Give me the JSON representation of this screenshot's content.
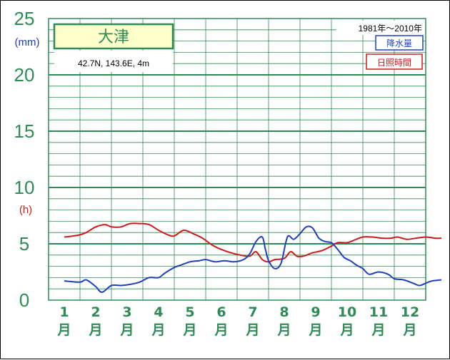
{
  "chart_data": {
    "type": "line",
    "title": "大津",
    "location": "42.7N,  143.6E,  4m",
    "period": "1981年〜2010年",
    "x_labels": [
      {
        "num": "1",
        "unit": "月"
      },
      {
        "num": "2",
        "unit": "月"
      },
      {
        "num": "3",
        "unit": "月"
      },
      {
        "num": "4",
        "unit": "月"
      },
      {
        "num": "5",
        "unit": "月"
      },
      {
        "num": "6",
        "unit": "月"
      },
      {
        "num": "7",
        "unit": "月"
      },
      {
        "num": "8",
        "unit": "月"
      },
      {
        "num": "9",
        "unit": "月"
      },
      {
        "num": "10",
        "unit": "月"
      },
      {
        "num": "11",
        "unit": "月"
      },
      {
        "num": "12",
        "unit": "月"
      }
    ],
    "y_ticks": [
      "0",
      "5",
      "10",
      "15",
      "20",
      "25"
    ],
    "ylim": [
      0,
      25
    ],
    "y_unit_precip": "(mm)",
    "y_unit_sunshine": "(h)",
    "grid": true,
    "legend_position": "top-right",
    "series": [
      {
        "name": "降水量",
        "color": "#1f3fbf",
        "x": [
          0.5,
          1.0,
          1.2,
          1.5,
          1.7,
          2.0,
          2.3,
          2.6,
          2.9,
          3.2,
          3.5,
          3.7,
          4.0,
          4.2,
          4.5,
          4.8,
          5.0,
          5.3,
          5.6,
          5.9,
          6.2,
          6.4,
          6.6,
          6.8,
          6.9,
          7.0,
          7.2,
          7.4,
          7.6,
          7.8,
          8.0,
          8.2,
          8.4,
          8.6,
          8.8,
          9.0,
          9.2,
          9.4,
          9.6,
          9.8,
          10.0,
          10.2,
          10.5,
          10.8,
          11.0,
          11.3,
          11.6,
          11.8,
          12.0,
          12.2,
          12.5
        ],
        "y": [
          1.7,
          1.6,
          1.8,
          1.2,
          0.7,
          1.3,
          1.3,
          1.4,
          1.6,
          2.0,
          2.0,
          2.4,
          2.9,
          3.1,
          3.4,
          3.5,
          3.6,
          3.4,
          3.5,
          3.4,
          3.6,
          4.1,
          5.2,
          5.6,
          4.5,
          3.5,
          2.8,
          3.3,
          5.6,
          5.4,
          5.9,
          6.5,
          6.4,
          5.5,
          5.2,
          5.1,
          4.5,
          3.8,
          3.5,
          3.1,
          2.8,
          2.3,
          2.5,
          2.3,
          1.9,
          1.8,
          1.5,
          1.3,
          1.5,
          1.7,
          1.8
        ]
      },
      {
        "name": "日照時間",
        "color": "#cc1a1a",
        "x": [
          0.5,
          0.8,
          1.0,
          1.2,
          1.5,
          1.8,
          2.0,
          2.3,
          2.6,
          2.9,
          3.2,
          3.5,
          3.8,
          4.0,
          4.3,
          4.6,
          4.9,
          5.2,
          5.5,
          5.8,
          6.1,
          6.4,
          6.6,
          6.8,
          7.0,
          7.2,
          7.5,
          7.7,
          7.9,
          8.1,
          8.4,
          8.7,
          9.0,
          9.2,
          9.5,
          9.7,
          10.0,
          10.3,
          10.6,
          10.9,
          11.1,
          11.4,
          11.7,
          12.0,
          12.3,
          12.5
        ],
        "y": [
          5.6,
          5.7,
          5.8,
          6.0,
          6.5,
          6.7,
          6.5,
          6.5,
          6.8,
          6.8,
          6.7,
          6.2,
          5.8,
          5.7,
          6.2,
          5.9,
          5.5,
          4.9,
          4.5,
          4.2,
          4.0,
          3.9,
          4.3,
          3.6,
          3.4,
          3.6,
          3.7,
          4.3,
          3.9,
          3.9,
          4.2,
          4.4,
          4.8,
          5.1,
          5.1,
          5.3,
          5.6,
          5.6,
          5.5,
          5.5,
          5.6,
          5.4,
          5.5,
          5.6,
          5.5,
          5.5
        ]
      }
    ]
  }
}
